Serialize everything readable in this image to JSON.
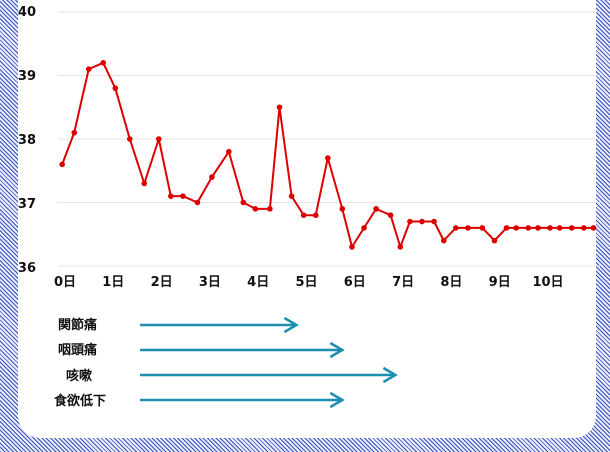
{
  "chart_data": {
    "type": "line",
    "title": "",
    "xlabel": "",
    "ylabel": "",
    "ylim": [
      36,
      40
    ],
    "yticks": [
      "36",
      "37",
      "38",
      "39",
      "40"
    ],
    "xticks": [
      "0日",
      "1日",
      "2日",
      "3日",
      "4日",
      "5日",
      "6日",
      "7日",
      "8日",
      "9日",
      "10日"
    ],
    "xlim": [
      -0.1,
      10.9
    ],
    "grid": true,
    "line_color": "#dd0000",
    "series": [
      {
        "x": [
          -0.1,
          0.15,
          0.45,
          0.75,
          1.0,
          1.3,
          1.6,
          1.9,
          2.15,
          2.4,
          2.7,
          3.0,
          3.35,
          3.65,
          3.9,
          4.2,
          4.4,
          4.65,
          4.9,
          5.15,
          5.4,
          5.7,
          5.9,
          6.15,
          6.4,
          6.7,
          6.9,
          7.1,
          7.35,
          7.6,
          7.8,
          8.05,
          8.3,
          8.6,
          8.85,
          9.1,
          9.3,
          9.55,
          9.75,
          10.0,
          10.2,
          10.45,
          10.7,
          10.9
        ],
        "values": [
          37.6,
          38.1,
          39.1,
          39.2,
          38.8,
          38.0,
          37.3,
          38.0,
          37.1,
          37.1,
          37.0,
          37.4,
          37.8,
          37.0,
          36.9,
          36.9,
          38.5,
          37.1,
          36.8,
          36.8,
          37.7,
          36.9,
          36.3,
          36.6,
          36.9,
          36.8,
          36.3,
          36.7,
          36.7,
          36.7,
          36.4,
          36.6,
          36.6,
          36.6,
          36.4,
          36.6,
          36.6,
          36.6,
          36.6,
          36.6,
          36.6,
          36.6,
          36.6,
          36.6
        ]
      }
    ],
    "symptoms_arrow_color": "#1a8faf",
    "symptoms": [
      {
        "label": "関節痛",
        "end_day": 4.75
      },
      {
        "label": "咽頭痛",
        "end_day": 5.7
      },
      {
        "label": "咳嗽",
        "end_day": 6.8
      },
      {
        "label": "食欲低下",
        "end_day": 5.7
      }
    ]
  }
}
